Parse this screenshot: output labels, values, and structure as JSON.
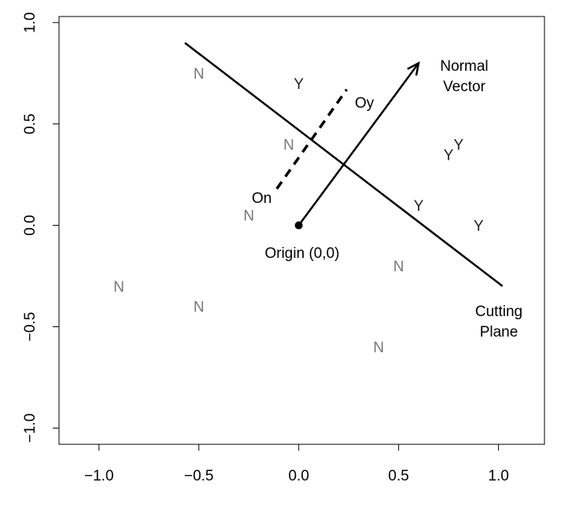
{
  "chart_data": {
    "type": "scatter",
    "title": "",
    "xlabel": "",
    "ylabel": "",
    "xlim": [
      -1.2,
      1.23
    ],
    "ylim": [
      -1.08,
      1.03
    ],
    "x_ticks": [
      -1.0,
      -0.5,
      0.0,
      0.5,
      1.0
    ],
    "x_tick_labels": [
      "−1.0",
      "−0.5",
      "0.0",
      "0.5",
      "1.0"
    ],
    "y_ticks": [
      -1.0,
      -0.5,
      0.0,
      0.5,
      1.0
    ],
    "y_tick_labels": [
      "−1.0",
      "−0.5",
      "0.0",
      "0.5",
      "1.0"
    ],
    "grid": false,
    "colors": {
      "Y": "#222222",
      "N": "#777777",
      "line": "#000000"
    },
    "points": [
      {
        "x": -0.5,
        "y": 0.75,
        "label": "N"
      },
      {
        "x": 0.0,
        "y": 0.7,
        "label": "Y"
      },
      {
        "x": -0.05,
        "y": 0.4,
        "label": "N"
      },
      {
        "x": -0.25,
        "y": 0.05,
        "label": "N"
      },
      {
        "x": 0.6,
        "y": 0.1,
        "label": "Y"
      },
      {
        "x": 0.75,
        "y": 0.35,
        "label": "Y"
      },
      {
        "x": 0.8,
        "y": 0.4,
        "label": "Y"
      },
      {
        "x": 0.9,
        "y": 0.0,
        "label": "Y"
      },
      {
        "x": 0.5,
        "y": -0.2,
        "label": "N"
      },
      {
        "x": -0.9,
        "y": -0.3,
        "label": "N"
      },
      {
        "x": -0.5,
        "y": -0.4,
        "label": "N"
      },
      {
        "x": 0.4,
        "y": -0.6,
        "label": "N"
      }
    ],
    "cutting_plane": {
      "x": [
        -0.57,
        1.02
      ],
      "y": [
        0.9,
        -0.3
      ]
    },
    "normal_vector": {
      "from": [
        0.0,
        0.0
      ],
      "to": [
        0.6,
        0.8
      ]
    },
    "projection": {
      "from": [
        -0.11,
        0.18
      ],
      "to": [
        0.24,
        0.67
      ]
    },
    "origin": {
      "x": 0.0,
      "y": 0.0
    },
    "annotations": {
      "normal_vector": [
        "Normal",
        "Vector"
      ],
      "cutting_plane": [
        "Cutting",
        "Plane"
      ],
      "origin": "Origin (0,0)",
      "oy": "Oy",
      "on": "On"
    }
  }
}
